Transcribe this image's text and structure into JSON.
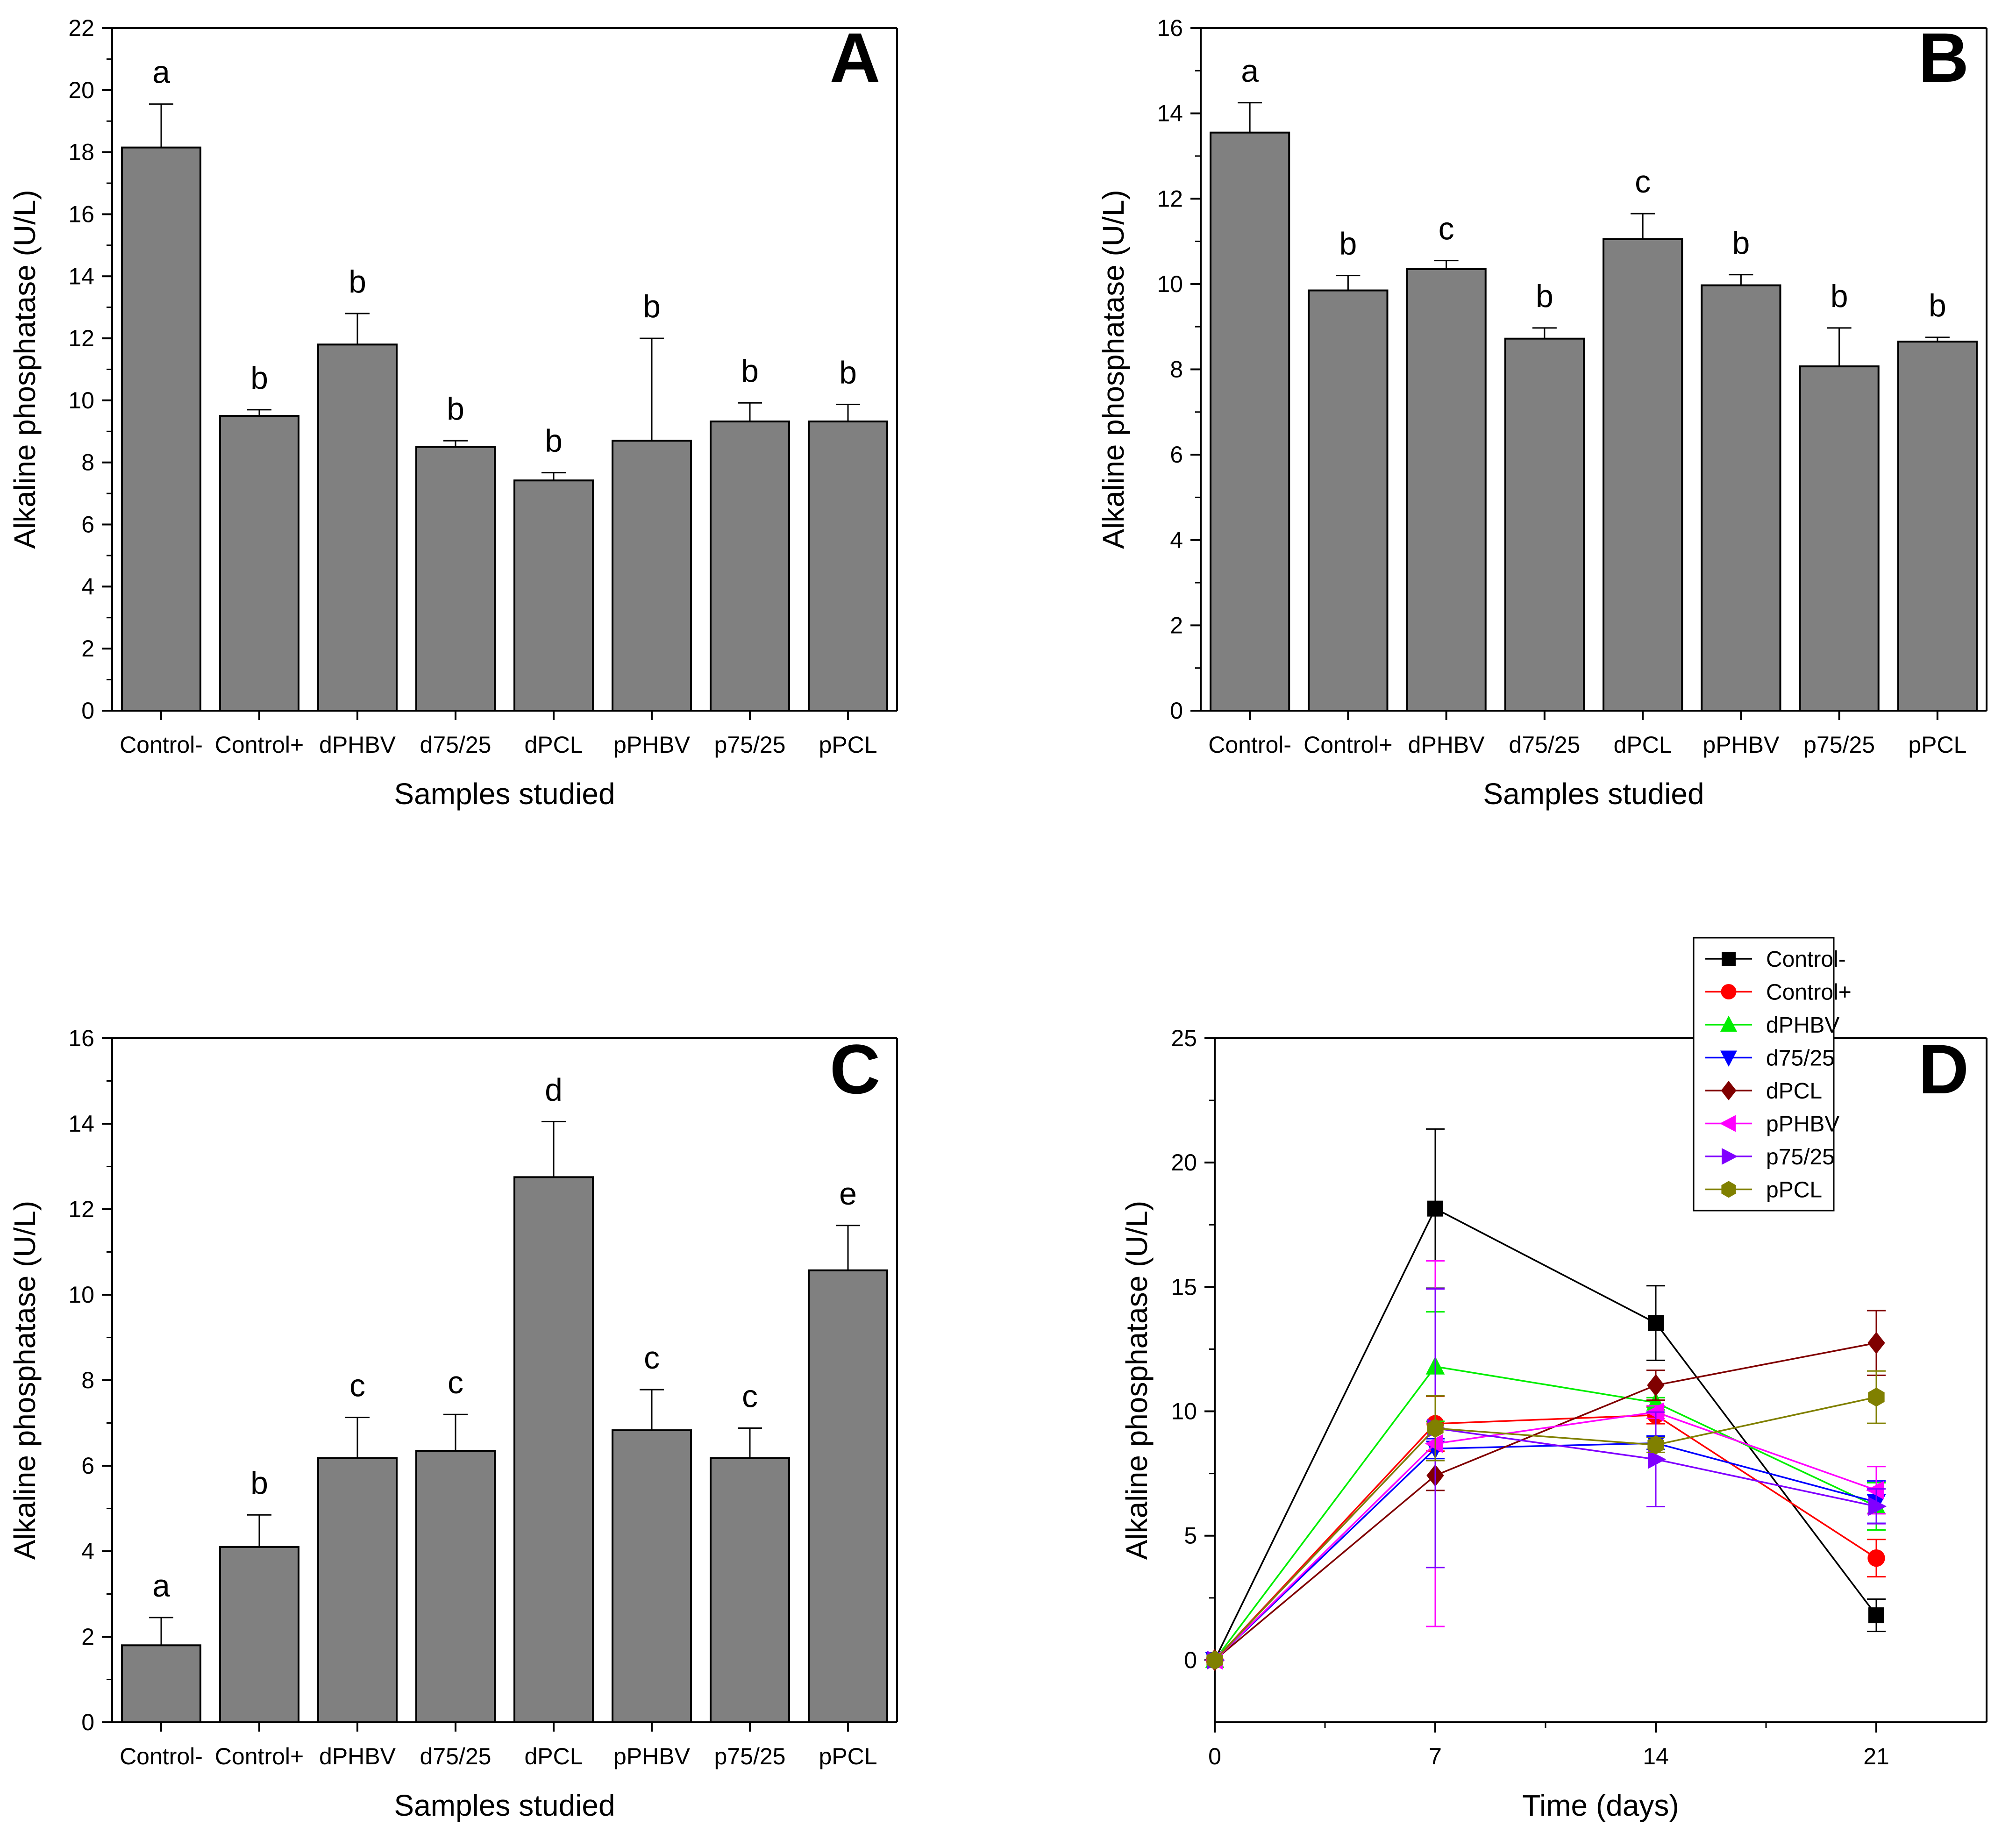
{
  "chart_data": [
    {
      "panel": "A",
      "type": "bar",
      "title": "",
      "xlabel": "Samples studied",
      "ylabel": "Alkaline phosphatase (U/L)",
      "ylim": [
        0,
        22
      ],
      "yticks": [
        0,
        2,
        4,
        6,
        8,
        10,
        12,
        14,
        16,
        18,
        20,
        22
      ],
      "categories": [
        "Control-",
        "Control+",
        "dPHBV",
        "d75/25",
        "dPCL",
        "pPHBV",
        "p75/25",
        "pPCL"
      ],
      "values": [
        18.15,
        9.5,
        11.8,
        8.5,
        7.42,
        8.7,
        9.32,
        9.32
      ],
      "errors": [
        1.4,
        0.2,
        1.0,
        0.2,
        0.25,
        3.3,
        0.6,
        0.55
      ],
      "letters": [
        "a",
        "b",
        "b",
        "b",
        "b",
        "b",
        "b",
        "b"
      ],
      "bar_color": "#808080"
    },
    {
      "panel": "B",
      "type": "bar",
      "title": "",
      "xlabel": "Samples studied",
      "ylabel": "Alkaline phosphatase (U/L)",
      "ylim": [
        0,
        16
      ],
      "yticks": [
        0,
        2,
        4,
        6,
        8,
        10,
        12,
        14,
        16
      ],
      "categories": [
        "Control-",
        "Control+",
        "dPHBV",
        "d75/25",
        "dPCL",
        "pPHBV",
        "p75/25",
        "pPCL"
      ],
      "values": [
        13.55,
        9.85,
        10.35,
        8.72,
        11.05,
        9.97,
        8.07,
        8.65
      ],
      "errors": [
        0.7,
        0.35,
        0.2,
        0.25,
        0.6,
        0.25,
        0.9,
        0.1
      ],
      "letters": [
        "a",
        "b",
        "c",
        "b",
        "c",
        "b",
        "b",
        "b"
      ],
      "bar_color": "#808080"
    },
    {
      "panel": "C",
      "type": "bar",
      "title": "",
      "xlabel": "Samples studied",
      "ylabel": "Alkaline phosphatase (U/L)",
      "ylim": [
        0,
        16
      ],
      "yticks": [
        0,
        2,
        4,
        6,
        8,
        10,
        12,
        14,
        16
      ],
      "categories": [
        "Control-",
        "Control+",
        "dPHBV",
        "d75/25",
        "dPCL",
        "pPHBV",
        "p75/25",
        "pPCL"
      ],
      "values": [
        1.8,
        4.1,
        6.18,
        6.35,
        12.75,
        6.83,
        6.18,
        10.57
      ],
      "errors": [
        0.65,
        0.75,
        0.95,
        0.85,
        1.3,
        0.95,
        0.7,
        1.05
      ],
      "letters": [
        "a",
        "b",
        "c",
        "c",
        "d",
        "c",
        "c",
        "e"
      ],
      "bar_color": "#808080"
    },
    {
      "panel": "D",
      "type": "line",
      "title": "",
      "xlabel": "Time (days)",
      "ylabel": "Alkaline phosphatase (U/L)",
      "xlim": [
        0,
        24.5
      ],
      "ylim": [
        -2.5,
        25
      ],
      "xticks": [
        0,
        7,
        14,
        21
      ],
      "yticks": [
        0,
        5,
        10,
        15,
        20,
        25
      ],
      "x": [
        0,
        7,
        14,
        21
      ],
      "series": [
        {
          "name": "Control-",
          "color": "#000000",
          "marker": "square",
          "values": [
            0,
            18.15,
            13.55,
            1.8
          ],
          "errors": [
            0,
            3.2,
            1.5,
            0.65
          ]
        },
        {
          "name": "Control+",
          "color": "#ff0000",
          "marker": "circle",
          "values": [
            0,
            9.5,
            9.85,
            4.1
          ],
          "errors": [
            0,
            1.1,
            0.35,
            0.75
          ]
        },
        {
          "name": "dPHBV",
          "color": "#00ee00",
          "marker": "triangle-up",
          "values": [
            0,
            11.8,
            10.35,
            6.18
          ],
          "errors": [
            0,
            2.2,
            0.2,
            0.95
          ]
        },
        {
          "name": "d75/25",
          "color": "#0000ff",
          "marker": "triangle-down",
          "values": [
            0,
            8.5,
            8.72,
            6.35
          ],
          "errors": [
            0,
            0.4,
            0.25,
            0.85
          ]
        },
        {
          "name": "dPCL",
          "color": "#800000",
          "marker": "diamond",
          "values": [
            0,
            7.42,
            11.05,
            12.75
          ],
          "errors": [
            0,
            0.6,
            0.6,
            1.3
          ]
        },
        {
          "name": "pPHBV",
          "color": "#ff00ff",
          "marker": "triangle-left",
          "values": [
            0,
            8.7,
            9.97,
            6.83
          ],
          "errors": [
            0,
            7.35,
            0.25,
            0.95
          ]
        },
        {
          "name": "p75/25",
          "color": "#8000ff",
          "marker": "triangle-right",
          "values": [
            0,
            9.32,
            8.07,
            6.18
          ],
          "errors": [
            0,
            5.6,
            1.9,
            0.7
          ]
        },
        {
          "name": "pPCL",
          "color": "#808000",
          "marker": "hexagon",
          "values": [
            0,
            9.32,
            8.65,
            10.57
          ],
          "errors": [
            0,
            1.3,
            0.3,
            1.05
          ]
        }
      ],
      "legend": "top-right, outside plot area"
    }
  ]
}
